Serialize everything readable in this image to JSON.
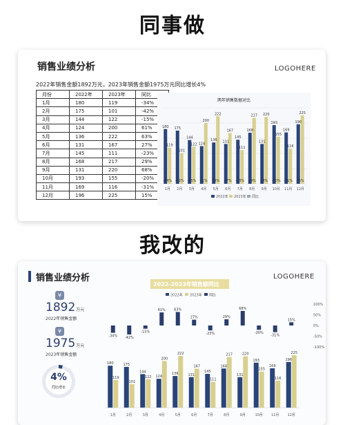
{
  "headings": {
    "top": "同事做",
    "bottom": "我改的"
  },
  "colors": {
    "navy": "#2a4478",
    "gold": "#d8cf8f",
    "accent": "#2a4478"
  },
  "card_top": {
    "title": "销售业绩分析",
    "logo": "LOGOHERE",
    "summary": "2022年销售金额1892万元，2023年销售金额1975万元同比增长4%",
    "table": {
      "headers": [
        "月份",
        "2022年",
        "2023年",
        "同比"
      ],
      "rows": [
        [
          "1月",
          "180",
          "119",
          "-34%"
        ],
        [
          "2月",
          "175",
          "101",
          "-42%"
        ],
        [
          "3月",
          "144",
          "122",
          "-15%"
        ],
        [
          "4月",
          "124",
          "200",
          "61%"
        ],
        [
          "5月",
          "136",
          "222",
          "63%"
        ],
        [
          "6月",
          "131",
          "167",
          "27%"
        ],
        [
          "7月",
          "145",
          "111",
          "-23%"
        ],
        [
          "8月",
          "168",
          "217",
          "29%"
        ],
        [
          "9月",
          "131",
          "220",
          "68%"
        ],
        [
          "10月",
          "193",
          "155",
          "-20%"
        ],
        [
          "11月",
          "169",
          "116",
          "-31%"
        ],
        [
          "12月",
          "196",
          "225",
          "15%"
        ]
      ]
    }
  },
  "card_bottom": {
    "title": "销售业绩分析",
    "logo": "LOGOHERE",
    "kpi_2022": {
      "icon": "¥",
      "value": "1892",
      "unit": "万元",
      "label": "2022年销售金额"
    },
    "kpi_2023": {
      "icon": "¥",
      "value": "1975",
      "unit": "万元",
      "label": "2023年销售金额"
    },
    "growth": {
      "value": "4%",
      "label": "同比增长",
      "fraction": 0.04
    }
  },
  "chart_data": [
    {
      "type": "bar",
      "title": "两年销售数据对比",
      "categories": [
        "1月",
        "2月",
        "3月",
        "4月",
        "5月",
        "6月",
        "7月",
        "8月",
        "9月",
        "10月",
        "11月",
        "12月"
      ],
      "series": [
        {
          "name": "2022年",
          "values": [
            180,
            175,
            144,
            124,
            136,
            131,
            145,
            168,
            131,
            193,
            169,
            196
          ]
        },
        {
          "name": "2023年",
          "values": [
            119,
            101,
            122,
            200,
            222,
            167,
            111,
            217,
            220,
            155,
            116,
            225
          ]
        },
        {
          "name": "同比",
          "values": [
            "-34%",
            "-42%",
            "-15%",
            "61%",
            "63%",
            "27%",
            "-23%",
            "29%",
            "68%",
            "-20%",
            "-31%",
            "15%"
          ]
        }
      ],
      "legend": "bottom",
      "grid": true
    },
    {
      "type": "bar",
      "title": "2022-2023年销售额同比",
      "categories": [
        "1月",
        "2月",
        "3月",
        "4月",
        "5月",
        "6月",
        "7月",
        "8月",
        "9月",
        "10月",
        "11月",
        "12月"
      ],
      "series": [
        {
          "name": "2022年",
          "values": [
            180,
            175,
            144,
            124,
            136,
            131,
            145,
            168,
            131,
            193,
            169,
            196
          ]
        },
        {
          "name": "2023年",
          "values": [
            119,
            101,
            122,
            200,
            222,
            167,
            111,
            217,
            220,
            155,
            116,
            225
          ]
        },
        {
          "name": "同比",
          "values": [
            -34,
            -42,
            -15,
            61,
            63,
            27,
            -23,
            29,
            68,
            -20,
            -31,
            15
          ]
        }
      ],
      "yoy_labels": [
        "-34%",
        "-42%",
        "-15%",
        "61%",
        "63%",
        "27%",
        "-23%",
        "29%",
        "68%",
        "-20%",
        "-31%",
        "15%"
      ],
      "right_axis_ticks": [
        "100%",
        "50%",
        "0%",
        "-50%",
        "-100%"
      ],
      "legend": "top",
      "grid": false
    }
  ]
}
